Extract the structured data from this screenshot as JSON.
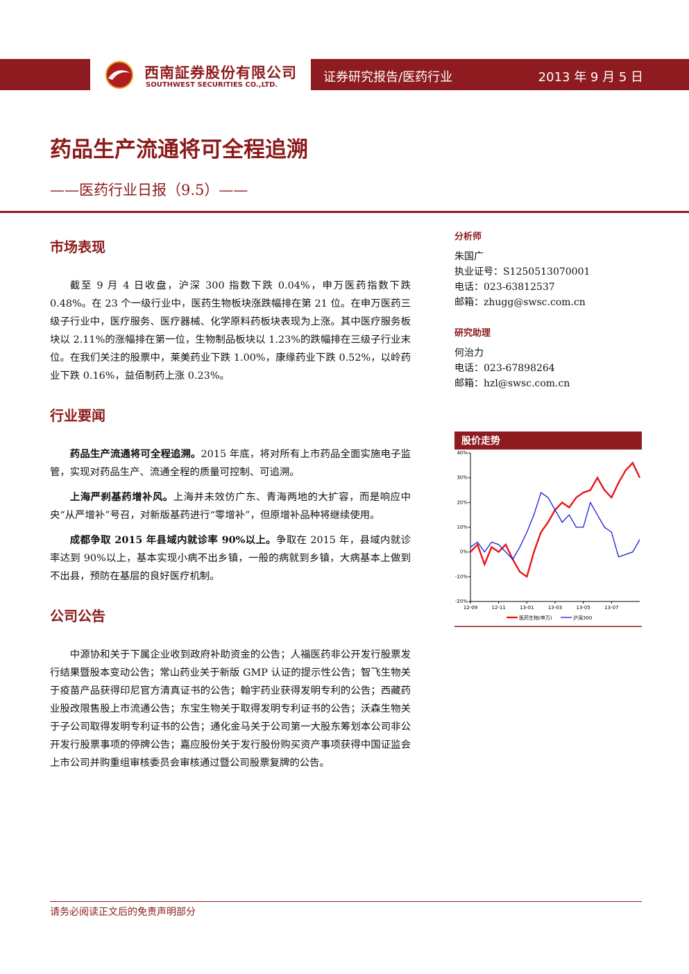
{
  "header": {
    "company_cn": "西南証券股份有限公司",
    "company_en": "SOUTHWEST SECURITIES CO.,LTD.",
    "report_type": "证券研究报告/医药行业",
    "date": "2013 年 9 月 5 日"
  },
  "title": "药品生产流通将可全程追溯",
  "subtitle": "——医药行业日报（9.5）——",
  "sections": [
    {
      "heading": "市场表现",
      "paragraphs": [
        {
          "lead": "",
          "text": "截至 9 月 4 日收盘，沪深 300 指数下跌 0.04%，申万医药指数下跌 0.48%。在 23 个一级行业中，医药生物板块涨跌幅排在第 21 位。在申万医药三级子行业中，医疗服务、医疗器械、化学原料药板块表现为上涨。其中医疗服务板块以 2.11%的涨幅排在第一位，生物制品板块以 1.23%的跌幅排在三级子行业末位。在我们关注的股票中，莱美药业下跌 1.00%，康缘药业下跌 0.52%，以岭药业下跌 0.16%，益佰制药上涨 0.23%。"
        }
      ]
    },
    {
      "heading": "行业要闻",
      "paragraphs": [
        {
          "lead": "药品生产流通将可全程追溯。",
          "text": "2015 年底，将对所有上市药品全面实施电子监管，实现对药品生产、流通全程的质量可控制、可追溯。"
        },
        {
          "lead": "上海严刹基药增补风。",
          "text": "上海并未效仿广东、青海两地的大扩容，而是响应中央“从严增补”号召，对新版基药进行“零增补”，但原增补品种将继续使用。"
        },
        {
          "lead": "成都争取 2015 年县域内就诊率 90%以上。",
          "text": "争取在 2015 年，县域内就诊率达到 90%以上，基本实现小病不出乡镇，一般的病就到乡镇，大病基本上做到不出县，预防在基层的良好医疗机制。"
        }
      ]
    },
    {
      "heading": "公司公告",
      "paragraphs": [
        {
          "lead": "",
          "text": "中源协和关于下属企业收到政府补助资金的公告；人福医药非公开发行股票发行结果暨股本变动公告；常山药业关于新版 GMP 认证的提示性公告；智飞生物关于疫苗产品获得印尼官方清真证书的公告；翰宇药业获得发明专利的公告；西藏药业股改限售股上市流通公告；东宝生物关于取得发明专利证书的公告；沃森生物关于子公司取得发明专利证书的公告；通化金马关于公司第一大股东筹划本公司非公开发行股票事项的停牌公告；嘉应股份关于发行股份购买资产事项获得中国证监会上市公司并购重组审核委员会审核通过暨公司股票复牌的公告。"
        }
      ]
    }
  ],
  "sidebar": [
    {
      "heading": "分析师",
      "lines": [
        "朱国广",
        "执业证号：S1250513070001",
        "电话：023-63812537",
        "邮箱：zhugg@swsc.com.cn"
      ]
    },
    {
      "heading": "研究助理",
      "lines": [
        "何治力",
        "电话：023-67898264",
        "邮箱：hzl@swsc.com.cn"
      ]
    }
  ],
  "chart_data": {
    "type": "line",
    "title": "股价走势",
    "categories": [
      "12-09",
      null,
      null,
      null,
      "12-11",
      null,
      null,
      null,
      "13-01",
      null,
      null,
      null,
      "13-03",
      null,
      null,
      null,
      "13-05",
      null,
      null,
      null,
      "13-07",
      null,
      null,
      null,
      null
    ],
    "series": [
      {
        "name": "医药生物(申万)",
        "color": "#e8141a",
        "values": [
          0,
          3,
          -5,
          2,
          0,
          3,
          -3,
          -8,
          -10,
          0,
          8,
          12,
          17,
          20,
          18,
          22,
          24,
          25,
          30,
          25,
          22,
          28,
          33,
          36,
          30
        ]
      },
      {
        "name": "沪深300",
        "color": "#1a1ad6",
        "values": [
          2,
          4,
          0,
          4,
          3,
          0,
          -3,
          2,
          8,
          15,
          24,
          22,
          17,
          12,
          15,
          10,
          10,
          20,
          15,
          10,
          8,
          -2,
          -1,
          0,
          5
        ]
      }
    ],
    "ylim": [
      -20,
      40
    ],
    "yticks": [
      {
        "value": -20,
        "label": "-20%"
      },
      {
        "value": -10,
        "label": "-10%"
      },
      {
        "value": 0,
        "label": "0%"
      },
      {
        "value": 10,
        "label": "10%"
      },
      {
        "value": 20,
        "label": "20%"
      },
      {
        "value": 30,
        "label": "30%"
      },
      {
        "value": 40,
        "label": "40%"
      }
    ]
  },
  "footer": "请务必阅读正文后的免责声明部分"
}
